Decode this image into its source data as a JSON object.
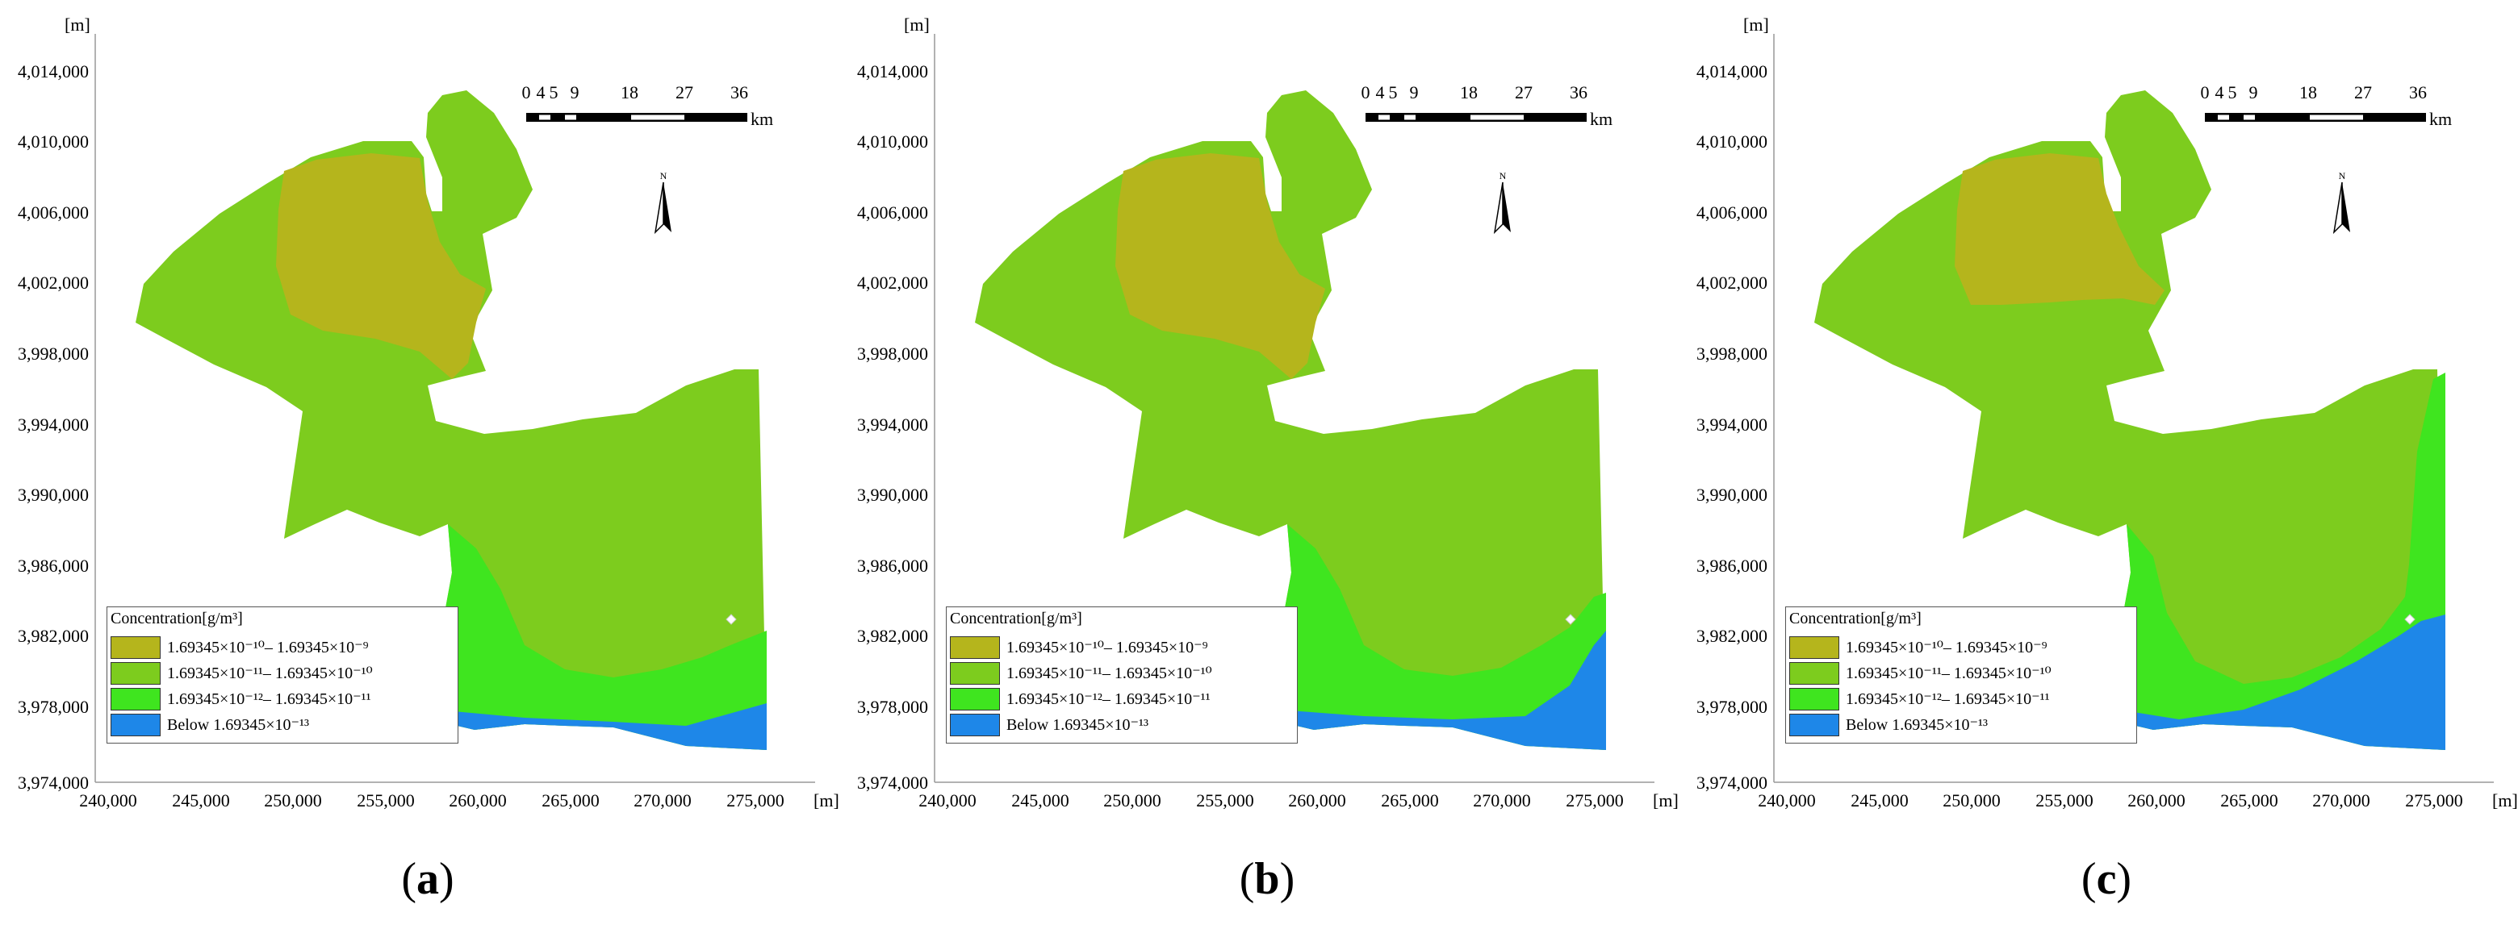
{
  "axes": {
    "y_unit": "[m]",
    "x_unit": "[m]",
    "y_ticks": [
      "4,014,000",
      "4,010,000",
      "4,006,000",
      "4,002,000",
      "3,998,000",
      "3,994,000",
      "3,990,000",
      "3,986,000",
      "3,982,000",
      "3,978,000",
      "3,974,000"
    ],
    "x_ticks": [
      "240,000",
      "245,000",
      "250,000",
      "255,000",
      "260,000",
      "265,000",
      "270,000",
      "275,000"
    ]
  },
  "scale_bar": {
    "labels": [
      "0",
      "4",
      "5",
      "9",
      "18",
      "27",
      "36"
    ],
    "unit": "km"
  },
  "north_label": "N",
  "legend": {
    "title": "Concentration[g/m³]",
    "items": [
      {
        "label": "1.69345×10⁻¹⁰– 1.69345×10⁻⁹",
        "color": "#b5b51c"
      },
      {
        "label": "1.69345×10⁻¹¹– 1.69345×10⁻¹⁰",
        "color": "#7dcc1e"
      },
      {
        "label": "1.69345×10⁻¹²– 1.69345×10⁻¹¹",
        "color": "#3fe51f"
      },
      {
        "label": "Below 1.69345×10⁻¹³",
        "color": "#1e87e8"
      }
    ]
  },
  "panels": [
    {
      "letter": "a"
    },
    {
      "letter": "b"
    },
    {
      "letter": "c"
    }
  ]
}
